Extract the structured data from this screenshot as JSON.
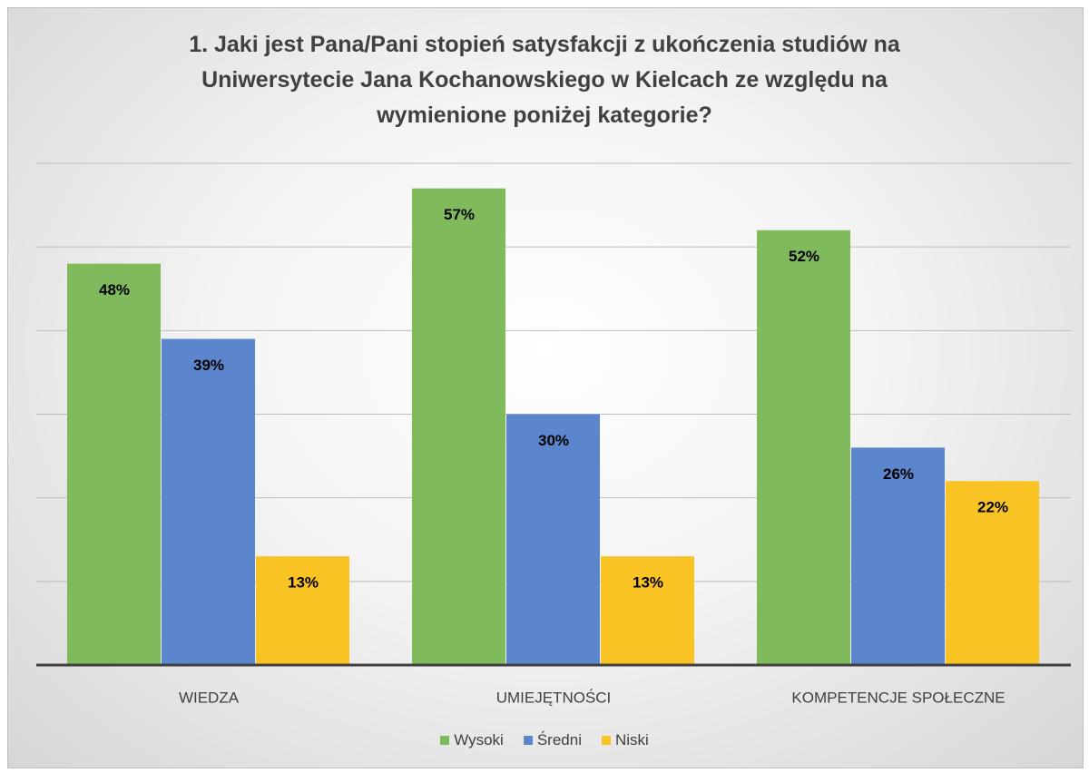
{
  "chart_data": {
    "type": "bar",
    "title": "1. Jaki jest Pana/Pani stopień satysfakcji z ukończenia studiów na Uniwersytecie Jana Kochanowskiego w Kielcach ze względu na wymienione poniżej kategorie?",
    "categories": [
      "WIEDZA",
      "UMIEJĘTNOŚCI",
      "KOMPETENCJE SPOŁECZNE"
    ],
    "series": [
      {
        "name": "Wysoki",
        "color": "#7fba5c",
        "values": [
          48,
          57,
          52
        ],
        "value_labels": [
          "48%",
          "57%",
          "52%"
        ]
      },
      {
        "name": "Średni",
        "color": "#5b85cc",
        "values": [
          39,
          30,
          26
        ],
        "value_labels": [
          "39%",
          "30%",
          "26%"
        ]
      },
      {
        "name": "Niski",
        "color": "#f9c324",
        "values": [
          13,
          13,
          22
        ],
        "value_labels": [
          "13%",
          "13%",
          "22%"
        ]
      }
    ],
    "ylim": [
      0,
      60
    ],
    "yticks": [
      0,
      10,
      20,
      30,
      40,
      50,
      60
    ],
    "grid": true,
    "legend": "bottom"
  }
}
